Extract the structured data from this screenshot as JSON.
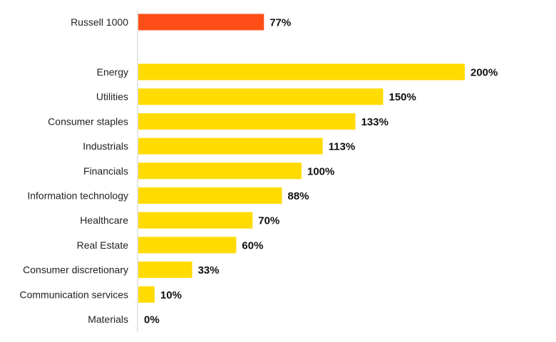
{
  "chart_data": {
    "type": "bar",
    "orientation": "horizontal",
    "title": "",
    "xlabel": "",
    "ylabel": "",
    "xlim": [
      0,
      200
    ],
    "grid": false,
    "legend": "none",
    "value_suffix": "%",
    "categories": [
      "Russell 1000",
      "Energy",
      "Utilities",
      "Consumer staples",
      "Industrials",
      "Financials",
      "Information technology",
      "Healthcare",
      "Real Estate",
      "Consumer discretionary",
      "Communication services",
      "Materials"
    ],
    "values": [
      77,
      200,
      150,
      133,
      113,
      100,
      88,
      70,
      60,
      33,
      10,
      0
    ],
    "value_labels": [
      "77%",
      "200%",
      "150%",
      "133%",
      "113%",
      "100%",
      "88%",
      "70%",
      "60%",
      "33%",
      "10%",
      "0%"
    ],
    "colors": {
      "benchmark": "#ff4e17",
      "sector": "#ffdb00",
      "axis": "#cccccc"
    },
    "highlighted_category": "Russell 1000"
  }
}
